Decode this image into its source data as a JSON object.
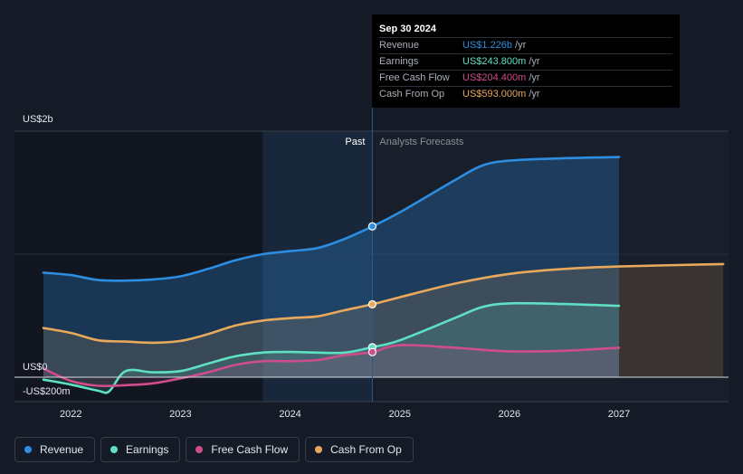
{
  "chart_data": {
    "type": "area",
    "title": "",
    "x_range": [
      2021.6,
      2027.95
    ],
    "ylim": [
      -200,
      2000
    ],
    "y_ticks": [
      {
        "value": 2000,
        "label": "US$2b"
      },
      {
        "value": 0,
        "label": "US$0"
      },
      {
        "value": -200,
        "label": "-US$200m"
      }
    ],
    "x_ticks": [
      {
        "value": 2022,
        "label": "2022"
      },
      {
        "value": 2023,
        "label": "2023"
      },
      {
        "value": 2024,
        "label": "2024"
      },
      {
        "value": 2025,
        "label": "2025"
      },
      {
        "value": 2026,
        "label": "2026"
      },
      {
        "value": 2027,
        "label": "2027"
      }
    ],
    "divider_x": 2024.75,
    "shaded_start_x": 2023.75,
    "forecast_end_x": 2027.0,
    "past_label": "Past",
    "forecast_label": "Analysts Forecasts",
    "series": [
      {
        "name": "Revenue",
        "color": "#2d8de0",
        "points": [
          [
            2021.75,
            850
          ],
          [
            2022.0,
            830
          ],
          [
            2022.25,
            790
          ],
          [
            2022.5,
            785
          ],
          [
            2022.75,
            795
          ],
          [
            2023.0,
            820
          ],
          [
            2023.25,
            880
          ],
          [
            2023.5,
            950
          ],
          [
            2023.75,
            1000
          ],
          [
            2024.0,
            1025
          ],
          [
            2024.25,
            1050
          ],
          [
            2024.5,
            1125
          ],
          [
            2024.75,
            1226
          ],
          [
            2025.0,
            1340
          ],
          [
            2025.5,
            1600
          ],
          [
            2025.75,
            1720
          ],
          [
            2026.0,
            1760
          ],
          [
            2026.5,
            1780
          ],
          [
            2027.0,
            1790
          ]
        ]
      },
      {
        "name": "Earnings",
        "color": "#5fe0c3",
        "points": [
          [
            2021.75,
            -20
          ],
          [
            2022.0,
            -60
          ],
          [
            2022.25,
            -110
          ],
          [
            2022.35,
            -115
          ],
          [
            2022.5,
            50
          ],
          [
            2022.75,
            40
          ],
          [
            2023.0,
            50
          ],
          [
            2023.25,
            110
          ],
          [
            2023.5,
            170
          ],
          [
            2023.75,
            200
          ],
          [
            2024.0,
            205
          ],
          [
            2024.25,
            200
          ],
          [
            2024.5,
            200
          ],
          [
            2024.75,
            243.8
          ],
          [
            2025.0,
            300
          ],
          [
            2025.5,
            480
          ],
          [
            2025.75,
            570
          ],
          [
            2026.0,
            600
          ],
          [
            2026.5,
            595
          ],
          [
            2027.0,
            580
          ]
        ]
      },
      {
        "name": "Free Cash Flow",
        "color": "#cf4d8b",
        "points": [
          [
            2021.75,
            70
          ],
          [
            2022.0,
            -30
          ],
          [
            2022.25,
            -70
          ],
          [
            2022.5,
            -65
          ],
          [
            2022.75,
            -50
          ],
          [
            2023.0,
            -10
          ],
          [
            2023.25,
            40
          ],
          [
            2023.5,
            100
          ],
          [
            2023.75,
            130
          ],
          [
            2024.0,
            130
          ],
          [
            2024.25,
            140
          ],
          [
            2024.5,
            180
          ],
          [
            2024.75,
            204.4
          ],
          [
            2025.0,
            260
          ],
          [
            2025.5,
            240
          ],
          [
            2026.0,
            210
          ],
          [
            2026.5,
            215
          ],
          [
            2027.0,
            240
          ]
        ]
      },
      {
        "name": "Cash From Op",
        "color": "#e8a95c",
        "points": [
          [
            2021.75,
            400
          ],
          [
            2022.0,
            360
          ],
          [
            2022.25,
            300
          ],
          [
            2022.5,
            290
          ],
          [
            2022.75,
            280
          ],
          [
            2023.0,
            295
          ],
          [
            2023.25,
            350
          ],
          [
            2023.5,
            420
          ],
          [
            2023.75,
            460
          ],
          [
            2024.0,
            480
          ],
          [
            2024.25,
            495
          ],
          [
            2024.5,
            545
          ],
          [
            2024.75,
            593
          ],
          [
            2025.0,
            650
          ],
          [
            2025.5,
            760
          ],
          [
            2026.0,
            840
          ],
          [
            2026.5,
            880
          ],
          [
            2027.0,
            900
          ],
          [
            2027.95,
            920
          ]
        ]
      }
    ]
  },
  "tooltip": {
    "date": "Sep 30 2024",
    "rows": [
      {
        "label": "Revenue",
        "value": "US$1.226b",
        "unit": "/yr",
        "color": "#2d8de0"
      },
      {
        "label": "Earnings",
        "value": "US$243.800m",
        "unit": "/yr",
        "color": "#5fe0c3"
      },
      {
        "label": "Free Cash Flow",
        "value": "US$204.400m",
        "unit": "/yr",
        "color": "#cf4d8b"
      },
      {
        "label": "Cash From Op",
        "value": "US$593.000m",
        "unit": "/yr",
        "color": "#e8a95c"
      }
    ]
  },
  "legend": [
    {
      "label": "Revenue",
      "color": "#2d8de0"
    },
    {
      "label": "Earnings",
      "color": "#5fe0c3"
    },
    {
      "label": "Free Cash Flow",
      "color": "#cf4d8b"
    },
    {
      "label": "Cash From Op",
      "color": "#e8a95c"
    }
  ]
}
